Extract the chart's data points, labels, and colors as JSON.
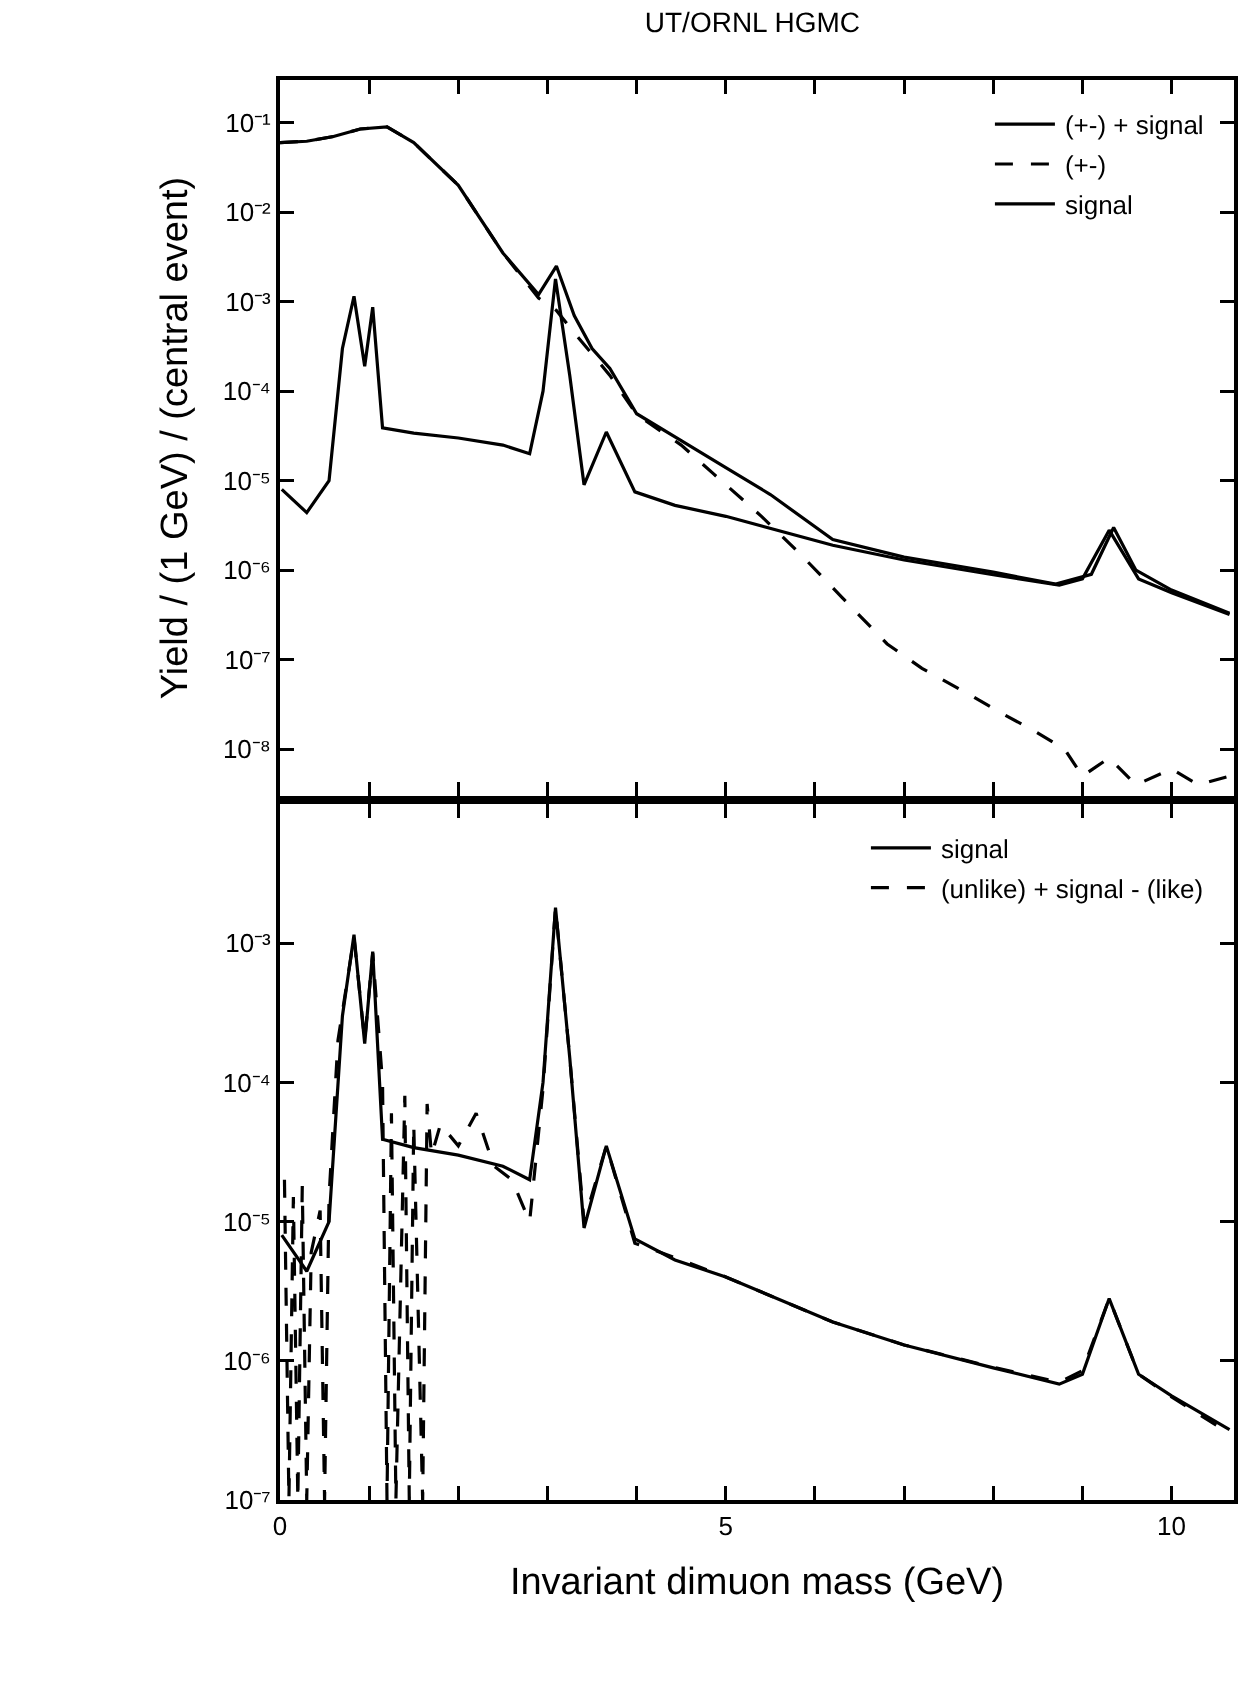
{
  "chart_data": [
    {
      "type": "line",
      "title": "UT/ORNL HGMC",
      "ylabel": "Yield / (1 GeV) / (central event)",
      "log": "y",
      "legend": "top right",
      "tick_labels": "y",
      "grid": false,
      "xlim": [
        0,
        10.7
      ],
      "xticks": [
        0,
        {
          "value": 1,
          "label": null
        },
        {
          "value": 2,
          "label": null
        },
        {
          "value": 3,
          "label": null
        },
        {
          "value": 4,
          "label": null
        },
        5,
        {
          "value": 6,
          "label": null
        },
        {
          "value": 7,
          "label": null
        },
        {
          "value": 8,
          "label": null
        },
        {
          "value": 9,
          "label": null
        },
        10
      ],
      "ylim": [
        3e-09,
        0.3
      ],
      "yticks": [
        {
          "value": 0.1,
          "label": "10⁻¹"
        },
        {
          "value": 0.01,
          "label": "10⁻²"
        },
        {
          "value": 0.001,
          "label": "10⁻³"
        },
        {
          "value": 0.0001,
          "label": "10⁻⁴"
        },
        {
          "value": 1e-05,
          "label": "10⁻⁵"
        },
        {
          "value": 1e-06,
          "label": "10⁻⁶"
        },
        {
          "value": 1e-07,
          "label": "10⁻⁷"
        },
        {
          "value": 1e-08,
          "label": "10⁻⁸"
        }
      ],
      "series": [
        {
          "name": "(+-) + signal",
          "color": "#000000",
          "line_style": "solid",
          "x": [
            0,
            0.3,
            0.6,
            0.9,
            1.2,
            1.5,
            2.0,
            2.5,
            2.9,
            3.1,
            3.3,
            3.5,
            3.7,
            4.0,
            4.5,
            5.0,
            5.5,
            6.2,
            7.0,
            8.0,
            8.7,
            9.1,
            9.35,
            9.6,
            10.0,
            10.65
          ],
          "values": [
            0.06,
            0.062,
            0.07,
            0.085,
            0.09,
            0.06,
            0.02,
            0.0035,
            0.0012,
            0.0025,
            0.0007,
            0.0003,
            0.00018,
            5.6e-05,
            2.8e-05,
            1.4e-05,
            7e-06,
            2.2e-06,
            1.4e-06,
            9.5e-07,
            7e-07,
            9e-07,
            3e-06,
            1e-06,
            6e-07,
            3.3e-07
          ]
        },
        {
          "name": "(+-)",
          "color": "#000000",
          "line_style": "dashed",
          "x": [
            0,
            0.3,
            0.6,
            0.9,
            1.2,
            1.5,
            2.0,
            2.5,
            2.9,
            3.1,
            3.3,
            3.5,
            3.7,
            4.0,
            4.5,
            4.86,
            5.4,
            5.84,
            6.3,
            6.81,
            7.2,
            7.71,
            8.1,
            8.46,
            8.8,
            9.0,
            9.3,
            9.6,
            10.0,
            10.3,
            10.65
          ],
          "values": [
            0.06,
            0.062,
            0.07,
            0.085,
            0.09,
            0.06,
            0.02,
            0.0035,
            0.0011,
            0.0008,
            0.00045,
            0.00026,
            0.00015,
            5.5e-05,
            2.5e-05,
            1.2e-05,
            4e-06,
            1.5e-06,
            5e-07,
            1.5e-07,
            8e-08,
            4.2e-08,
            2.5e-08,
            1.6e-08,
            1e-08,
            5e-09,
            8e-09,
            4e-09,
            6e-09,
            4e-09,
            5e-09
          ]
        },
        {
          "name": "signal",
          "color": "#000000",
          "line_style": "solid",
          "x": [
            0.02,
            0.3,
            0.55,
            0.7,
            0.83,
            0.95,
            1.04,
            1.15,
            1.5,
            2.0,
            2.5,
            2.8,
            2.95,
            3.09,
            3.25,
            3.41,
            3.66,
            3.98,
            4.43,
            5.0,
            6.2,
            7.0,
            8.0,
            8.74,
            9.0,
            9.3,
            9.63,
            10.0,
            10.65
          ],
          "values": [
            8e-06,
            4.4e-06,
            1e-05,
            0.0003,
            0.00115,
            0.00019,
            0.00087,
            3.9e-05,
            3.4e-05,
            3e-05,
            2.5e-05,
            2e-05,
            0.0001,
            0.0018,
            0.00015,
            9e-06,
            3.5e-05,
            7.5e-06,
            5.3e-06,
            4e-06,
            1.9e-06,
            1.3e-06,
            8.9e-07,
            6.8e-07,
            8e-07,
            2.8e-06,
            8e-07,
            5.6e-07,
            3.2e-07
          ]
        }
      ]
    },
    {
      "type": "line",
      "xlabel": "Invariant dimuon mass (GeV)",
      "log": "y",
      "legend": "top right",
      "grid": false,
      "xlim": [
        0,
        10.7
      ],
      "xticks": [
        0,
        {
          "value": 1,
          "label": null
        },
        {
          "value": 2,
          "label": null
        },
        {
          "value": 3,
          "label": null
        },
        {
          "value": 4,
          "label": null
        },
        5,
        {
          "value": 6,
          "label": null
        },
        {
          "value": 7,
          "label": null
        },
        {
          "value": 8,
          "label": null
        },
        {
          "value": 9,
          "label": null
        },
        10
      ],
      "ylim": [
        1e-07,
        0.01
      ],
      "yticks": [
        {
          "value": 0.001,
          "label": "10⁻³"
        },
        {
          "value": 0.0001,
          "label": "10⁻⁴"
        },
        {
          "value": 1e-05,
          "label": "10⁻⁵"
        },
        {
          "value": 1e-06,
          "label": "10⁻⁶"
        },
        {
          "value": 1e-07,
          "label": "10⁻⁷"
        }
      ],
      "series": [
        {
          "name": "signal",
          "color": "#000000",
          "line_style": "solid",
          "x": [
            0.02,
            0.3,
            0.55,
            0.7,
            0.83,
            0.95,
            1.04,
            1.15,
            1.5,
            2.0,
            2.5,
            2.8,
            2.95,
            3.09,
            3.25,
            3.41,
            3.66,
            3.98,
            4.43,
            5.0,
            6.2,
            7.0,
            8.0,
            8.74,
            9.0,
            9.3,
            9.63,
            10.0,
            10.65
          ],
          "values": [
            8e-06,
            4.4e-06,
            1e-05,
            0.0003,
            0.00115,
            0.00019,
            0.00087,
            3.9e-05,
            3.4e-05,
            3e-05,
            2.5e-05,
            2e-05,
            0.0001,
            0.0018,
            0.00015,
            9e-06,
            3.5e-05,
            7.5e-06,
            5.3e-06,
            4e-06,
            1.9e-06,
            1.3e-06,
            8.9e-07,
            6.8e-07,
            8e-07,
            2.8e-06,
            8e-07,
            5.6e-07,
            3.2e-07
          ]
        },
        {
          "name": "(unlike) + signal - (like)",
          "color": "#000000",
          "line_style": "dashed",
          "x": [
            0.05,
            0.1,
            0.15,
            0.2,
            0.25,
            0.3,
            0.35,
            0.45,
            0.5,
            0.55,
            0.65,
            0.83,
            0.95,
            1.04,
            1.15,
            1.2,
            1.25,
            1.3,
            1.4,
            1.45,
            1.5,
            1.6,
            1.65,
            1.7,
            1.8,
            2.0,
            2.2,
            2.4,
            2.6,
            2.8,
            2.95,
            3.09,
            3.25,
            3.41,
            3.66,
            3.98,
            4.43,
            5.0,
            6.2,
            7.0,
            8.0,
            8.74,
            9.0,
            9.3,
            9.63,
            10.0,
            10.65
          ],
          "values": [
            2e-05,
            1e-07,
            1.5e-05,
            1e-07,
            1.8e-05,
            1e-07,
            6e-06,
            1.2e-05,
            1e-07,
            1.5e-05,
            0.0002,
            0.0011,
            0.0002,
            0.00085,
            0.0001,
            1e-07,
            6e-05,
            1e-07,
            8e-05,
            1e-07,
            5e-05,
            1e-07,
            7e-05,
            3e-05,
            5e-05,
            3.5e-05,
            6e-05,
            2.5e-05,
            2e-05,
            1e-05,
            9e-05,
            0.0018,
            0.00015,
            1e-05,
            3.5e-05,
            7e-06,
            5.5e-06,
            4e-06,
            1.9e-06,
            1.3e-06,
            9e-07,
            7e-07,
            8.5e-07,
            2.8e-06,
            8e-07,
            5.5e-07,
            3e-07
          ]
        }
      ]
    }
  ]
}
